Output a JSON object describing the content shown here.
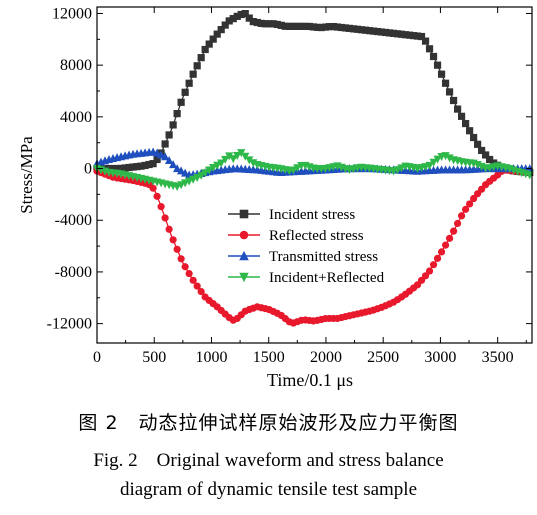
{
  "caption": {
    "cn": "图 2　动态拉伸试样原始波形及应力平衡图",
    "en_line1": "Fig. 2　Original waveform and stress balance",
    "en_line2": "diagram of dynamic tensile test sample"
  },
  "chart_data": {
    "type": "line",
    "title": "",
    "xlabel": "Time/0.1 μs",
    "ylabel": "Stress/MPa",
    "xlim": [
      0,
      3800
    ],
    "ylim": [
      -13500,
      12500
    ],
    "xticks": [
      0,
      500,
      1000,
      1500,
      2000,
      2500,
      3000,
      3500
    ],
    "yticks": [
      -12000,
      -8000,
      -4000,
      0,
      4000,
      8000,
      12000
    ],
    "xtick_labels": [
      "0",
      "500",
      "1000",
      "1500",
      "2000",
      "2500",
      "3000",
      "3500"
    ],
    "ytick_labels": [
      "-12000",
      "-8000",
      "-4000",
      "0",
      "4000",
      "8000",
      "12000"
    ],
    "legend_position": "center",
    "series": [
      {
        "name": "Incident stress",
        "color": "#333333",
        "marker": "square",
        "x": [
          0,
          200,
          400,
          500,
          550,
          650,
          750,
          850,
          950,
          1050,
          1150,
          1250,
          1300,
          1350,
          1450,
          1550,
          1650,
          1750,
          1850,
          1950,
          2050,
          2150,
          2250,
          2350,
          2450,
          2550,
          2650,
          2750,
          2850,
          2950,
          3050,
          3150,
          3250,
          3350,
          3450,
          3550,
          3650,
          3780
        ],
        "y": [
          0,
          0,
          200,
          400,
          1000,
          3000,
          5500,
          7500,
          9300,
          10400,
          11400,
          11900,
          12000,
          11400,
          11200,
          11200,
          11000,
          11000,
          11000,
          10900,
          11000,
          10900,
          10800,
          10700,
          10600,
          10500,
          10400,
          10300,
          10200,
          8500,
          6500,
          4600,
          3000,
          1500,
          500,
          0,
          -200,
          -300
        ]
      },
      {
        "name": "Reflected stress",
        "color": "#e8192c",
        "marker": "circle",
        "x": [
          0,
          150,
          300,
          450,
          500,
          550,
          650,
          750,
          850,
          950,
          1050,
          1150,
          1200,
          1300,
          1400,
          1500,
          1600,
          1700,
          1800,
          1900,
          2000,
          2100,
          2200,
          2300,
          2400,
          2500,
          2600,
          2700,
          2800,
          2900,
          3000,
          3100,
          3200,
          3300,
          3400,
          3500,
          3550,
          3650,
          3780
        ],
        "y": [
          -200,
          -700,
          -900,
          -1200,
          -1600,
          -2700,
          -5200,
          -7300,
          -8800,
          -10000,
          -10700,
          -11500,
          -11800,
          -11000,
          -10700,
          -10900,
          -11300,
          -12000,
          -11700,
          -11800,
          -11600,
          -11600,
          -11400,
          -11200,
          -11000,
          -10700,
          -10300,
          -9700,
          -9000,
          -8000,
          -6600,
          -5100,
          -3400,
          -2200,
          -1200,
          -500,
          -100,
          -200,
          -300
        ]
      },
      {
        "name": "Transmitted stress",
        "color": "#1f4fbf",
        "marker": "triangle",
        "x": [
          0,
          100,
          200,
          300,
          400,
          500,
          600,
          700,
          800,
          900,
          1000,
          1200,
          1400,
          1600,
          1800,
          2000,
          2200,
          2400,
          2600,
          2800,
          3000,
          3200,
          3400,
          3600,
          3780
        ],
        "y": [
          400,
          700,
          900,
          1100,
          1200,
          1300,
          900,
          0,
          -500,
          -400,
          -200,
          0,
          -100,
          -300,
          -200,
          -100,
          0,
          0,
          -100,
          -200,
          -100,
          -100,
          0,
          0,
          0
        ]
      },
      {
        "name": "Incident+Reflected",
        "color": "#2fb84a",
        "marker": "triangle-down",
        "x": [
          0,
          100,
          200,
          300,
          400,
          500,
          600,
          700,
          800,
          900,
          1000,
          1100,
          1150,
          1200,
          1250,
          1300,
          1350,
          1400,
          1500,
          1600,
          1700,
          1800,
          1900,
          2000,
          2100,
          2200,
          2300,
          2400,
          2500,
          2600,
          2700,
          2800,
          2900,
          3000,
          3050,
          3100,
          3200,
          3300,
          3400,
          3500,
          3600,
          3700,
          3780
        ],
        "y": [
          0,
          -300,
          -400,
          -600,
          -800,
          -1000,
          -1200,
          -1400,
          -1000,
          -600,
          0,
          500,
          1000,
          700,
          1300,
          900,
          500,
          300,
          100,
          0,
          -200,
          300,
          0,
          0,
          200,
          -100,
          100,
          0,
          -100,
          -200,
          200,
          0,
          200,
          900,
          1000,
          700,
          500,
          400,
          0,
          200,
          0,
          -300,
          -500
        ]
      }
    ]
  }
}
